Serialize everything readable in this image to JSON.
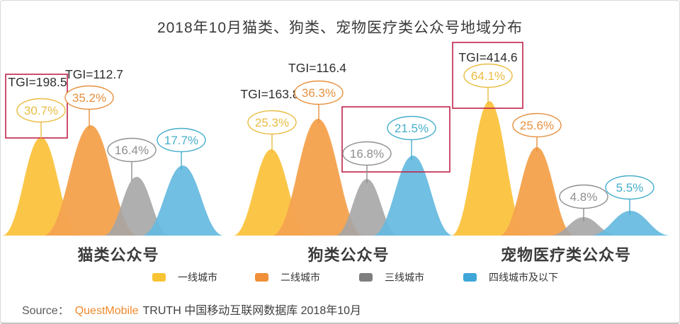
{
  "title": "2018年10月猫类、狗类、宠物医疗类公众号地域分布",
  "chart_data": {
    "type": "bar",
    "variant": "bell-shaped grouped distribution",
    "title": "2018年10月猫类、狗类、宠物医疗类公众号地域分布",
    "unit": "%",
    "categories": [
      "猫类公众号",
      "狗类公众号",
      "宠物医疗类公众号"
    ],
    "series": [
      {
        "name": "一线城市",
        "color": "#FBC648",
        "values": [
          30.7,
          25.3,
          64.1
        ],
        "tgi": [
          198.5,
          163.8,
          414.6
        ]
      },
      {
        "name": "二线城市",
        "color": "#F5A350",
        "values": [
          35.2,
          36.3,
          25.6
        ],
        "tgi": [
          112.7,
          116.4,
          null
        ]
      },
      {
        "name": "三线城市",
        "color": "#A6A6A6",
        "values": [
          16.4,
          16.8,
          4.8
        ],
        "tgi": [
          null,
          null,
          null
        ]
      },
      {
        "name": "四线城市及以下",
        "color": "#66BAE0",
        "values": [
          17.7,
          21.5,
          5.5
        ],
        "tgi": [
          null,
          null,
          null
        ]
      }
    ],
    "highlights": [
      {
        "category": "猫类公众号",
        "series": [
          "一线城市"
        ],
        "note": "red box around TGI=198.5 and 30.7%"
      },
      {
        "category": "狗类公众号",
        "series": [
          "三线城市",
          "四线城市及以下"
        ],
        "note": "red box around 16.8% and 21.5%"
      },
      {
        "category": "宠物医疗类公众号",
        "series": [
          "一线城市"
        ],
        "note": "red box around TGI=414.6 and 64.1%"
      }
    ],
    "legend_position": "bottom",
    "grid": false
  },
  "groups": [
    {
      "label": "猫类公众号",
      "hills": [
        {
          "tier": "一线城市",
          "value_label": "30.7%",
          "tgi_label": "TGI=198.5",
          "highlighted": true
        },
        {
          "tier": "二线城市",
          "value_label": "35.2%",
          "tgi_label": "TGI=112.7",
          "highlighted": false
        },
        {
          "tier": "三线城市",
          "value_label": "16.4%",
          "highlighted": false
        },
        {
          "tier": "四线城市及以下",
          "value_label": "17.7%",
          "highlighted": false
        }
      ]
    },
    {
      "label": "狗类公众号",
      "hills": [
        {
          "tier": "一线城市",
          "value_label": "25.3%",
          "tgi_label": "TGI=163.8",
          "highlighted": false
        },
        {
          "tier": "二线城市",
          "value_label": "36.3%",
          "tgi_label": "TGI=116.4",
          "highlighted": false
        },
        {
          "tier": "三线城市",
          "value_label": "16.8%",
          "highlighted": true
        },
        {
          "tier": "四线城市及以下",
          "value_label": "21.5%",
          "highlighted": true
        }
      ]
    },
    {
      "label": "宠物医疗类公众号",
      "hills": [
        {
          "tier": "一线城市",
          "value_label": "64.1%",
          "tgi_label": "TGI=414.6",
          "highlighted": true
        },
        {
          "tier": "二线城市",
          "value_label": "25.6%",
          "highlighted": false
        },
        {
          "tier": "三线城市",
          "value_label": "4.8%",
          "highlighted": false
        },
        {
          "tier": "四线城市及以下",
          "value_label": "5.5%",
          "highlighted": false
        }
      ]
    }
  ],
  "legend": {
    "items": [
      {
        "label": "一线城市",
        "color": "#F7C434"
      },
      {
        "label": "二线城市",
        "color": "#F09038"
      },
      {
        "label": "三线城市",
        "color": "#7E7E7E"
      },
      {
        "label": "四线城市及以下",
        "color": "#3EA6D9"
      }
    ]
  },
  "source": {
    "prefix": "Source：",
    "brand": "QuestMobile",
    "rest": "TRUTH 中国移动互联网数据库 2018年10月"
  },
  "colors": {
    "hill_fills": [
      "#FBC648",
      "#F5A350",
      "#A6A6A6",
      "#66BAE0"
    ],
    "label_colors": [
      "#E9BC41",
      "#E69140",
      "#8F8F8F",
      "#46AECB"
    ],
    "tgi_text": "#2f2f2f",
    "highlight": "#C0234A",
    "title_text": "#3A3A3A"
  }
}
